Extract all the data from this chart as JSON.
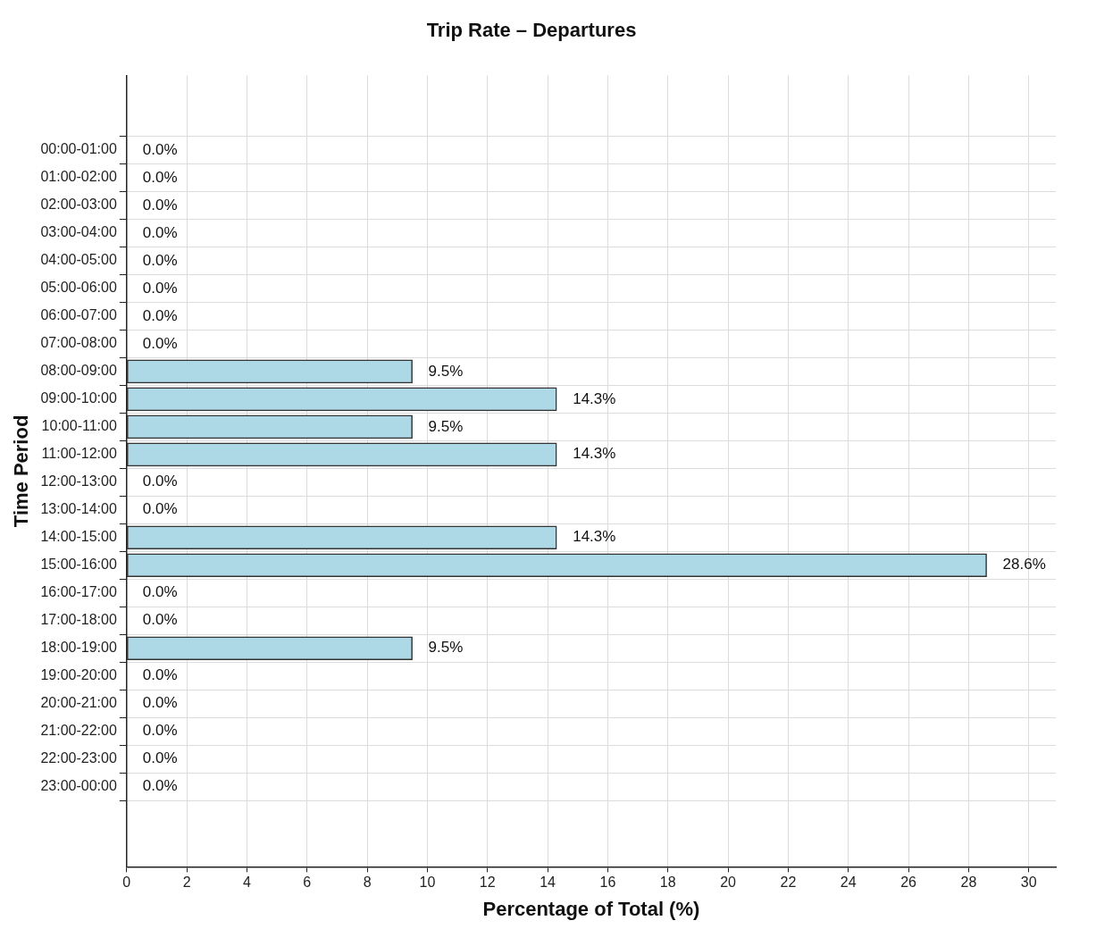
{
  "chart_data": {
    "type": "bar",
    "orientation": "horizontal",
    "title": "Trip Rate – Departures",
    "xlabel": "Percentage of Total (%)",
    "ylabel": "Time Period",
    "categories": [
      "00:00-01:00",
      "01:00-02:00",
      "02:00-03:00",
      "03:00-04:00",
      "04:00-05:00",
      "05:00-06:00",
      "06:00-07:00",
      "07:00-08:00",
      "08:00-09:00",
      "09:00-10:00",
      "10:00-11:00",
      "11:00-12:00",
      "12:00-13:00",
      "13:00-14:00",
      "14:00-15:00",
      "15:00-16:00",
      "16:00-17:00",
      "17:00-18:00",
      "18:00-19:00",
      "19:00-20:00",
      "20:00-21:00",
      "21:00-22:00",
      "22:00-23:00",
      "23:00-00:00"
    ],
    "values": [
      0,
      0,
      0,
      0,
      0,
      0,
      0,
      0,
      9.5,
      14.3,
      9.5,
      14.3,
      0,
      0,
      14.3,
      28.6,
      0,
      0,
      9.5,
      0,
      0,
      0,
      0,
      0
    ],
    "value_labels": [
      "0.0%",
      "0.0%",
      "0.0%",
      "0.0%",
      "0.0%",
      "0.0%",
      "0.0%",
      "0.0%",
      "9.5%",
      "14.3%",
      "9.5%",
      "14.3%",
      "0.0%",
      "0.0%",
      "14.3%",
      "28.6%",
      "0.0%",
      "0.0%",
      "9.5%",
      "0.0%",
      "0.0%",
      "0.0%",
      "0.0%",
      "0.0%"
    ],
    "color": "#add8e6",
    "xlim": [
      0,
      30.9
    ],
    "xticks": [
      0,
      2,
      4,
      6,
      8,
      10,
      12,
      14,
      16,
      18,
      20,
      22,
      24,
      26,
      28,
      30
    ],
    "grid": true,
    "legend": false
  }
}
